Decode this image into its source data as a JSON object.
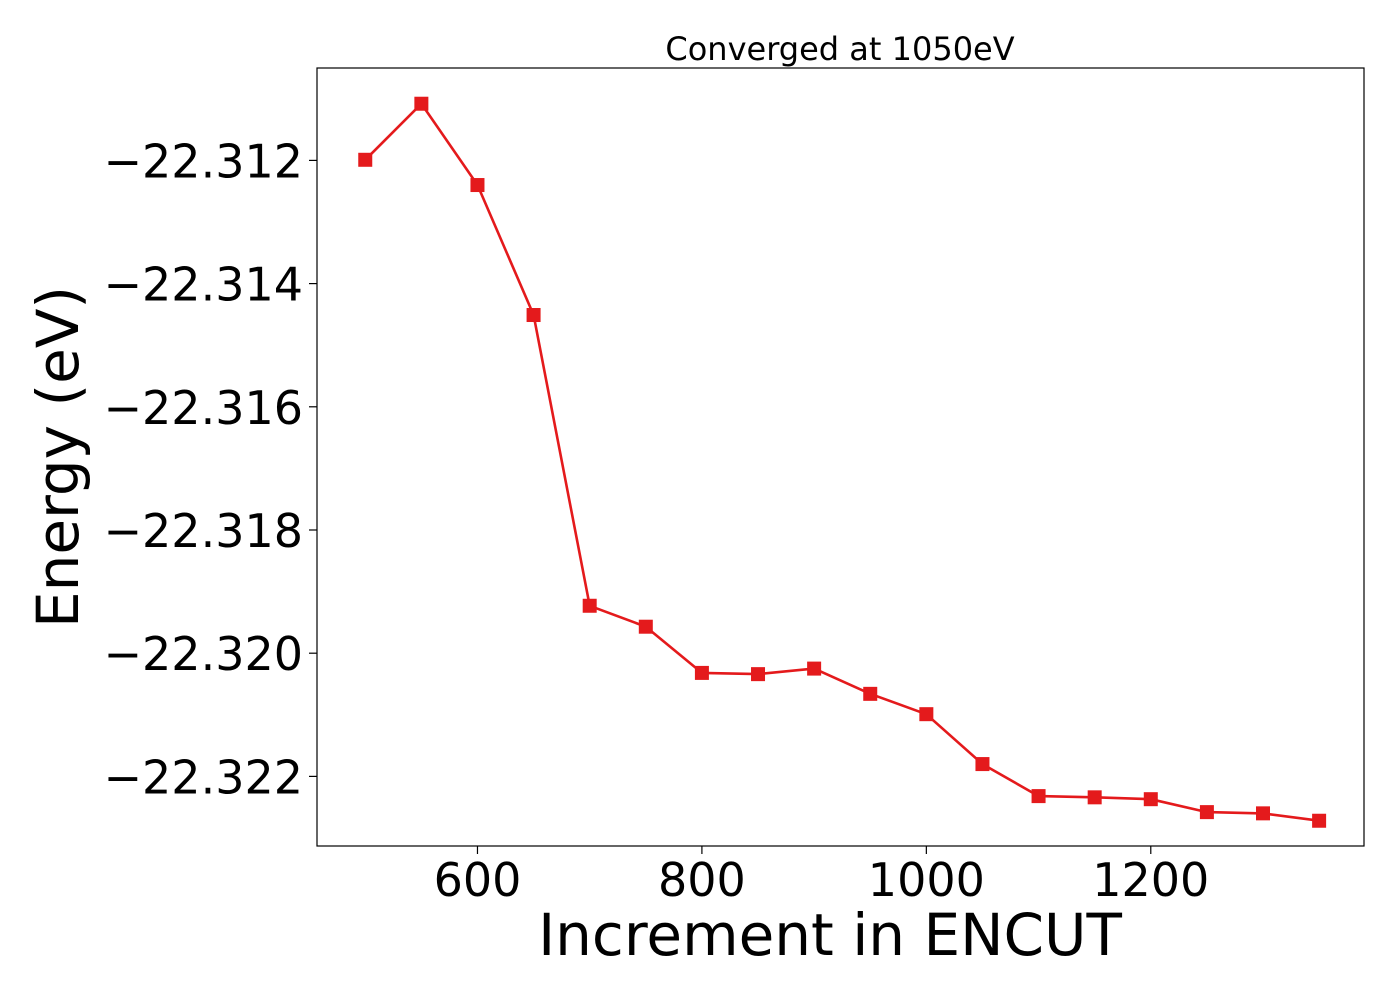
{
  "chart_data": {
    "type": "line",
    "title": "Converged at 1050eV",
    "xlabel": "Increment in ENCUT",
    "ylabel": "Energy (eV)",
    "xlim": [
      457,
      1390
    ],
    "ylim": [
      -22.32313,
      -22.3105
    ],
    "xticks": [
      600,
      800,
      1000,
      1200
    ],
    "xtick_labels": [
      "600",
      "800",
      "1000",
      "1200"
    ],
    "yticks": [
      -22.312,
      -22.314,
      -22.316,
      -22.318,
      -22.32,
      -22.322
    ],
    "ytick_labels": [
      "−22.312",
      "−22.314",
      "−22.316",
      "−22.318",
      "−22.320",
      "−22.322"
    ],
    "grid": false,
    "marker": "square",
    "color": "#e41a1c",
    "x": [
      500,
      550,
      600,
      650,
      700,
      750,
      800,
      850,
      900,
      950,
      1000,
      1050,
      1100,
      1150,
      1200,
      1250,
      1300,
      1350
    ],
    "y": [
      -22.31199,
      -22.31108,
      -22.3124,
      -22.31451,
      -22.31923,
      -22.31957,
      -22.32032,
      -22.32034,
      -22.32025,
      -22.32066,
      -22.32099,
      -22.3218,
      -22.32232,
      -22.32234,
      -22.32237,
      -22.32258,
      -22.3226,
      -22.32272
    ]
  }
}
